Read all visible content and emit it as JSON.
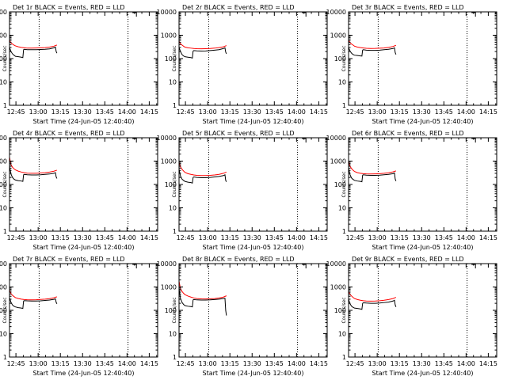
{
  "figure": {
    "background": "#ffffff",
    "axis_color": "#000000",
    "events_color": "#000000",
    "lld_color": "#ff0000",
    "ylabel": "Counts/sec",
    "xlabel": "Start Time (24-Jun-05 12:40:40)",
    "xticks": [
      "12:45",
      "13:00",
      "13:15",
      "13:30",
      "13:45",
      "14:00",
      "14:15"
    ],
    "yticks": [
      "1",
      "10",
      "100",
      "1000",
      "10000"
    ]
  },
  "chart_data": [
    {
      "type": "line",
      "title": "Det 1r BLACK = Events, RED = LLD",
      "xlabel": "Start Time (24-Jun-05 12:40:40)",
      "ylabel": "Counts/sec",
      "x_unit": "minutes after 12:40:40",
      "xlim": [
        0,
        100
      ],
      "ylim": [
        1,
        10000
      ],
      "yscale": "log",
      "vlines": [
        20,
        80
      ],
      "marker_x": 83,
      "series": [
        {
          "name": "Events",
          "color": "#000000",
          "x": [
            0,
            1,
            2,
            3,
            4,
            6,
            8,
            9,
            9.5,
            10,
            12,
            15,
            18,
            21,
            24,
            27,
            30,
            31,
            31.5,
            32
          ],
          "y": [
            300,
            200,
            160,
            140,
            125,
            120,
            115,
            110,
            240,
            250,
            240,
            240,
            240,
            245,
            250,
            260,
            290,
            310,
            200,
            170
          ]
        },
        {
          "name": "LLD",
          "color": "#ff0000",
          "x": [
            0,
            1,
            2,
            3,
            4,
            6,
            8,
            10,
            12,
            15,
            18,
            21,
            24,
            27,
            30,
            32
          ],
          "y": [
            600,
            470,
            420,
            380,
            350,
            320,
            300,
            290,
            280,
            280,
            285,
            290,
            295,
            310,
            340,
            380
          ]
        }
      ]
    },
    {
      "type": "line",
      "title": "Det 2r BLACK = Events, RED = LLD",
      "xlabel": "Start Time (24-Jun-05 12:40:40)",
      "ylabel": "Counts/sec",
      "x_unit": "minutes after 12:40:40",
      "xlim": [
        0,
        100
      ],
      "ylim": [
        1,
        10000
      ],
      "yscale": "log",
      "vlines": [
        20,
        80
      ],
      "marker_x": 83,
      "series": [
        {
          "name": "Events",
          "color": "#000000",
          "x": [
            0,
            1,
            2,
            3,
            4,
            6,
            8,
            9,
            9.5,
            10,
            12,
            15,
            18,
            21,
            24,
            27,
            30,
            31,
            31.5,
            32
          ],
          "y": [
            300,
            200,
            150,
            130,
            120,
            115,
            110,
            105,
            210,
            220,
            215,
            210,
            212,
            220,
            230,
            240,
            270,
            290,
            190,
            160
          ]
        },
        {
          "name": "LLD",
          "color": "#ff0000",
          "x": [
            0,
            1,
            2,
            3,
            4,
            6,
            8,
            10,
            12,
            15,
            18,
            21,
            24,
            27,
            30,
            32
          ],
          "y": [
            550,
            430,
            380,
            340,
            310,
            290,
            280,
            270,
            265,
            262,
            265,
            270,
            280,
            295,
            320,
            360
          ]
        }
      ]
    },
    {
      "type": "line",
      "title": "Det 3r BLACK = Events, RED = LLD",
      "xlabel": "Start Time (24-Jun-05 12:40:40)",
      "ylabel": "Counts/sec",
      "x_unit": "minutes after 12:40:40",
      "xlim": [
        0,
        100
      ],
      "ylim": [
        1,
        10000
      ],
      "yscale": "log",
      "vlines": [
        20,
        80
      ],
      "marker_x": 83,
      "series": [
        {
          "name": "Events",
          "color": "#000000",
          "x": [
            0,
            1,
            2,
            3,
            4,
            6,
            8,
            9,
            9.5,
            10,
            12,
            15,
            18,
            21,
            24,
            27,
            30,
            31,
            31.5,
            32
          ],
          "y": [
            300,
            210,
            170,
            150,
            140,
            135,
            130,
            128,
            230,
            240,
            230,
            225,
            225,
            230,
            240,
            250,
            270,
            290,
            180,
            150
          ]
        },
        {
          "name": "LLD",
          "color": "#ff0000",
          "x": [
            0,
            1,
            2,
            3,
            4,
            6,
            8,
            10,
            12,
            15,
            18,
            21,
            24,
            27,
            30,
            32
          ],
          "y": [
            620,
            480,
            420,
            380,
            340,
            310,
            295,
            285,
            275,
            270,
            272,
            278,
            285,
            300,
            330,
            370
          ]
        }
      ]
    },
    {
      "type": "line",
      "title": "Det 4r BLACK = Events, RED = LLD",
      "xlabel": "Start Time (24-Jun-05 12:40:40)",
      "ylabel": "Counts/sec",
      "x_unit": "minutes after 12:40:40",
      "xlim": [
        0,
        100
      ],
      "ylim": [
        1,
        10000
      ],
      "yscale": "log",
      "vlines": [
        20,
        80
      ],
      "marker_x": 83,
      "series": [
        {
          "name": "Events",
          "color": "#000000",
          "x": [
            0,
            1,
            2,
            3,
            4,
            6,
            8,
            9,
            9.5,
            10,
            12,
            15,
            18,
            21,
            24,
            27,
            30,
            31,
            31.5,
            32
          ],
          "y": [
            600,
            280,
            200,
            170,
            155,
            145,
            140,
            135,
            260,
            270,
            260,
            255,
            255,
            260,
            270,
            280,
            300,
            320,
            210,
            180
          ]
        },
        {
          "name": "LLD",
          "color": "#ff0000",
          "x": [
            0,
            0.5,
            1,
            2,
            3,
            4,
            6,
            8,
            10,
            12,
            15,
            18,
            21,
            24,
            27,
            30,
            32
          ],
          "y": [
            1500,
            1000,
            700,
            550,
            470,
            420,
            370,
            340,
            320,
            305,
            300,
            300,
            310,
            320,
            340,
            370,
            410
          ]
        }
      ]
    },
    {
      "type": "line",
      "title": "Det 5r BLACK = Events, RED = LLD",
      "xlabel": "Start Time (24-Jun-05 12:40:40)",
      "ylabel": "Counts/sec",
      "x_unit": "minutes after 12:40:40",
      "xlim": [
        0,
        100
      ],
      "ylim": [
        1,
        10000
      ],
      "yscale": "log",
      "vlines": [
        20,
        80
      ],
      "marker_x": 83,
      "series": [
        {
          "name": "Events",
          "color": "#000000",
          "x": [
            0,
            1,
            2,
            3,
            4,
            6,
            8,
            9,
            9.5,
            10,
            12,
            15,
            18,
            21,
            24,
            27,
            30,
            31,
            31.5,
            32
          ],
          "y": [
            450,
            230,
            170,
            150,
            135,
            125,
            120,
            115,
            200,
            210,
            200,
            195,
            195,
            200,
            210,
            220,
            240,
            260,
            150,
            130
          ]
        },
        {
          "name": "LLD",
          "color": "#ff0000",
          "x": [
            0,
            1,
            2,
            3,
            4,
            6,
            8,
            10,
            12,
            15,
            18,
            21,
            24,
            27,
            30,
            32
          ],
          "y": [
            900,
            560,
            450,
            380,
            330,
            290,
            270,
            255,
            245,
            240,
            240,
            245,
            255,
            270,
            300,
            340
          ]
        }
      ]
    },
    {
      "type": "line",
      "title": "Det 6r BLACK = Events, RED = LLD",
      "xlabel": "Start Time (24-Jun-05 12:40:40)",
      "ylabel": "Counts/sec",
      "x_unit": "minutes after 12:40:40",
      "xlim": [
        0,
        100
      ],
      "ylim": [
        1,
        10000
      ],
      "yscale": "log",
      "vlines": [
        20,
        80
      ],
      "marker_x": 83,
      "series": [
        {
          "name": "Events",
          "color": "#000000",
          "x": [
            0,
            1,
            2,
            3,
            4,
            6,
            8,
            9,
            9.5,
            10,
            12,
            15,
            18,
            21,
            24,
            27,
            30,
            31,
            31.5,
            32
          ],
          "y": [
            500,
            260,
            190,
            165,
            150,
            140,
            135,
            130,
            250,
            260,
            250,
            245,
            245,
            250,
            260,
            270,
            290,
            310,
            170,
            140
          ]
        },
        {
          "name": "LLD",
          "color": "#ff0000",
          "x": [
            0,
            1,
            2,
            3,
            4,
            6,
            8,
            10,
            12,
            15,
            18,
            21,
            24,
            27,
            30,
            32
          ],
          "y": [
            1000,
            600,
            480,
            410,
            360,
            320,
            300,
            290,
            285,
            282,
            285,
            290,
            300,
            315,
            345,
            380
          ]
        }
      ]
    },
    {
      "type": "line",
      "title": "Det 7r BLACK = Events, RED = LLD",
      "xlabel": "Start Time (24-Jun-05 12:40:40)",
      "ylabel": "Counts/sec",
      "x_unit": "minutes after 12:40:40",
      "xlim": [
        0,
        100
      ],
      "ylim": [
        1,
        10000
      ],
      "yscale": "log",
      "vlines": [
        20,
        80
      ],
      "marker_x": 83,
      "series": [
        {
          "name": "Events",
          "color": "#000000",
          "x": [
            0,
            1,
            2,
            3,
            4,
            6,
            8,
            9,
            9.5,
            10,
            12,
            15,
            18,
            21,
            24,
            27,
            30,
            31,
            31.5,
            32
          ],
          "y": [
            350,
            220,
            170,
            150,
            140,
            130,
            125,
            120,
            250,
            260,
            255,
            250,
            250,
            255,
            265,
            275,
            295,
            310,
            220,
            190
          ]
        },
        {
          "name": "LLD",
          "color": "#ff0000",
          "x": [
            0,
            1,
            2,
            3,
            4,
            6,
            8,
            10,
            12,
            15,
            18,
            21,
            24,
            27,
            30,
            32
          ],
          "y": [
            750,
            520,
            440,
            390,
            350,
            320,
            300,
            290,
            285,
            282,
            285,
            292,
            300,
            315,
            345,
            380
          ]
        }
      ]
    },
    {
      "type": "line",
      "title": "Det 8r BLACK = Events, RED = LLD",
      "xlabel": "Start Time (24-Jun-05 12:40:40)",
      "ylabel": "Counts/sec",
      "x_unit": "minutes after 12:40:40",
      "xlim": [
        0,
        100
      ],
      "ylim": [
        1,
        10000
      ],
      "yscale": "log",
      "vlines": [
        20,
        80
      ],
      "marker_x": 83,
      "series": [
        {
          "name": "Events",
          "color": "#000000",
          "x": [
            0,
            1,
            2,
            3,
            4,
            6,
            8,
            9,
            9.5,
            10,
            12,
            15,
            18,
            21,
            24,
            27,
            30,
            31,
            31.5,
            32
          ],
          "y": [
            800,
            320,
            220,
            180,
            160,
            150,
            145,
            140,
            280,
            290,
            280,
            275,
            275,
            280,
            290,
            300,
            320,
            330,
            100,
            60
          ]
        },
        {
          "name": "LLD",
          "color": "#ff0000",
          "x": [
            0,
            0.5,
            1,
            2,
            3,
            4,
            6,
            8,
            10,
            12,
            15,
            18,
            21,
            24,
            27,
            30,
            32
          ],
          "y": [
            1800,
            1200,
            850,
            650,
            540,
            470,
            410,
            370,
            340,
            320,
            310,
            308,
            312,
            320,
            340,
            370,
            420
          ]
        }
      ]
    },
    {
      "type": "line",
      "title": "Det 9r BLACK = Events, RED = LLD",
      "xlabel": "Start Time (24-Jun-05 12:40:40)",
      "ylabel": "Counts/sec",
      "x_unit": "minutes after 12:40:40",
      "xlim": [
        0,
        100
      ],
      "ylim": [
        1,
        10000
      ],
      "yscale": "log",
      "vlines": [
        20,
        80
      ],
      "marker_x": 83,
      "series": [
        {
          "name": "Events",
          "color": "#000000",
          "x": [
            0,
            1,
            2,
            3,
            4,
            6,
            8,
            9,
            9.5,
            10,
            12,
            15,
            18,
            21,
            24,
            27,
            30,
            31,
            31.5,
            32
          ],
          "y": [
            300,
            190,
            150,
            135,
            125,
            120,
            115,
            110,
            200,
            210,
            205,
            200,
            200,
            205,
            215,
            225,
            250,
            270,
            170,
            140
          ]
        },
        {
          "name": "LLD",
          "color": "#ff0000",
          "x": [
            0,
            1,
            2,
            3,
            4,
            6,
            8,
            10,
            12,
            15,
            18,
            21,
            24,
            27,
            30,
            32
          ],
          "y": [
            650,
            480,
            410,
            360,
            320,
            290,
            270,
            258,
            250,
            248,
            250,
            258,
            270,
            290,
            320,
            360
          ]
        }
      ]
    }
  ]
}
